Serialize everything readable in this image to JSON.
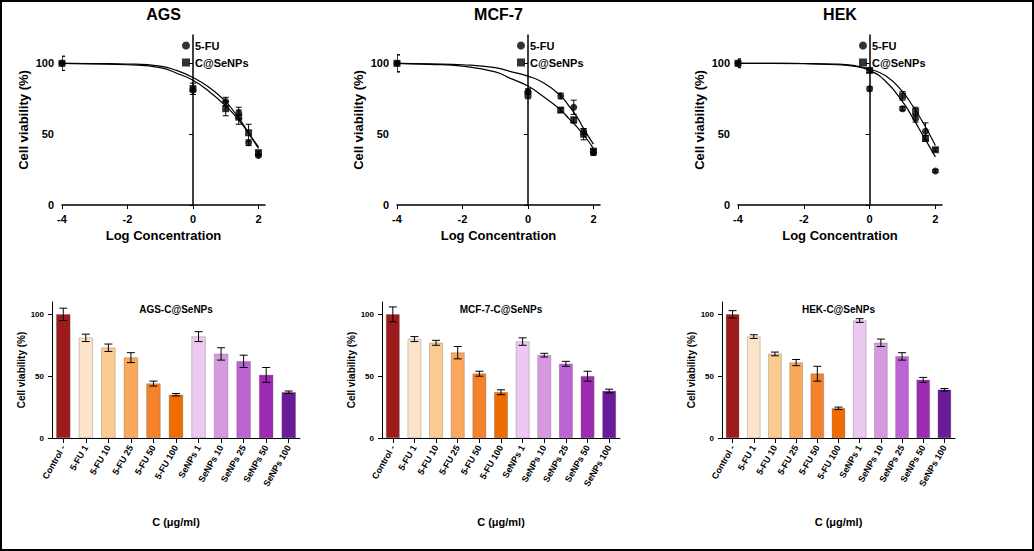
{
  "chart_data": [
    {
      "type": "scatter",
      "title": "AGS",
      "x_label": "Log Concentration",
      "y_label": "Cell viability (%)",
      "xlim": [
        -4,
        2.2
      ],
      "xticks": [
        -4,
        -2,
        0,
        2
      ],
      "ylim": [
        0,
        120
      ],
      "yticks": [
        0,
        50,
        100
      ],
      "legend": "upper right",
      "series": [
        {
          "name": "5-FU",
          "marker": "circle",
          "color": "#000000",
          "x": [
            -4,
            0,
            1,
            1.398,
            1.699,
            2
          ],
          "values": [
            100,
            81,
            73,
            65,
            44,
            35
          ],
          "errors": [
            5,
            3,
            3,
            4,
            2,
            1
          ],
          "fit_x": [
            -4,
            -3,
            -2,
            -1,
            -0.5,
            0,
            0.5,
            1,
            1.25,
            1.5,
            1.75,
            2
          ],
          "fit_values": [
            100,
            99.8,
            99.5,
            98,
            95,
            90,
            83,
            73,
            66,
            58,
            49,
            40
          ]
        },
        {
          "name": "C@SeNPs",
          "marker": "square",
          "color": "#000000",
          "x": [
            -4,
            0,
            1,
            1.398,
            1.699,
            2
          ],
          "values": [
            100,
            82,
            68,
            62,
            51,
            37
          ],
          "errors": [
            5,
            4,
            5,
            5,
            6,
            1
          ],
          "fit_x": [
            -4,
            -3,
            -2,
            -1,
            -0.5,
            0,
            0.5,
            1,
            1.25,
            1.5,
            1.75,
            2
          ],
          "fit_values": [
            100,
            99.6,
            99,
            97,
            93,
            88,
            80,
            70,
            64,
            57,
            49,
            41
          ]
        }
      ]
    },
    {
      "type": "scatter",
      "title": "MCF-7",
      "x_label": "Log Concentration",
      "y_label": "Cell viability (%)",
      "xlim": [
        -4,
        2.2
      ],
      "xticks": [
        -4,
        -2,
        0,
        2
      ],
      "ylim": [
        0,
        120
      ],
      "yticks": [
        0,
        50,
        100
      ],
      "legend": "upper right",
      "series": [
        {
          "name": "5-FU",
          "marker": "circle",
          "color": "#000000",
          "x": [
            -4,
            0,
            1,
            1.398,
            1.699,
            2
          ],
          "values": [
            100,
            80,
            77,
            69,
            52,
            37
          ],
          "errors": [
            6,
            2,
            2,
            5,
            2,
            2
          ],
          "fit_x": [
            -4,
            -3,
            -2,
            -1,
            -0.5,
            0,
            0.5,
            1,
            1.25,
            1.5,
            1.75,
            2
          ],
          "fit_values": [
            100,
            99.6,
            99,
            97,
            94,
            91,
            86,
            77,
            70,
            62,
            52,
            43
          ]
        },
        {
          "name": "C@SeNPs",
          "marker": "square",
          "color": "#000000",
          "x": [
            -4,
            0,
            1,
            1.398,
            1.699,
            2
          ],
          "values": [
            100,
            78,
            67,
            60,
            50,
            38
          ],
          "errors": [
            6,
            3,
            1.5,
            2,
            4,
            1.5
          ],
          "fit_x": [
            -4,
            -3,
            -2,
            -1,
            -0.5,
            0,
            0.5,
            1,
            1.25,
            1.5,
            1.75,
            2
          ],
          "fit_values": [
            100,
            99.3,
            98,
            94,
            89,
            84,
            76,
            67,
            61,
            55,
            48,
            40
          ]
        }
      ]
    },
    {
      "type": "scatter",
      "title": "HEK",
      "x_label": "Log Concentration",
      "y_label": "Cell viability (%)",
      "xlim": [
        -4,
        2.2
      ],
      "xticks": [
        -4,
        -2,
        0,
        2
      ],
      "ylim": [
        0,
        120
      ],
      "yticks": [
        0,
        50,
        100
      ],
      "legend": "upper right",
      "series": [
        {
          "name": "5-FU",
          "marker": "circle",
          "color": "#000000",
          "x": [
            -4,
            0,
            1,
            1.398,
            1.699,
            2
          ],
          "values": [
            100,
            82,
            68,
            61,
            52,
            24
          ],
          "errors": [
            3,
            1.5,
            1.5,
            2.5,
            6,
            1
          ],
          "fit_x": [
            -4,
            -3,
            -2,
            -1,
            -0.5,
            0,
            0.5,
            1,
            1.25,
            1.5,
            1.75,
            2
          ],
          "fit_values": [
            100,
            100,
            99.8,
            99,
            98,
            95,
            87,
            73,
            64,
            54,
            44,
            34
          ]
        },
        {
          "name": "C@SeNPs",
          "marker": "square",
          "color": "#000000",
          "x": [
            -4,
            0,
            1,
            1.398,
            1.699,
            2
          ],
          "values": [
            100,
            95,
            77,
            66,
            47,
            39
          ],
          "errors": [
            3,
            1.5,
            3,
            3,
            2,
            1
          ],
          "fit_x": [
            -4,
            -3,
            -2,
            -1,
            -0.5,
            0,
            0.5,
            1,
            1.25,
            1.5,
            1.75,
            2
          ],
          "fit_values": [
            100,
            100,
            99.9,
            99.5,
            98.5,
            96,
            91,
            80,
            72,
            63,
            53,
            42
          ]
        }
      ]
    },
    {
      "type": "bar",
      "title": "AGS-C@SeNPs",
      "x_label": "C (μg/ml)",
      "y_label": "Cell viability (%)",
      "ylim": [
        0,
        110
      ],
      "yticks": [
        0,
        50,
        100
      ],
      "categories": [
        "Control -",
        "5-FU 1",
        "5-FU 10",
        "5-FU 25",
        "5-FU 50",
        "5-FU 100",
        "SeNPs 1",
        "SeNPs 10",
        "SeNPs 25",
        "SeNPs 50",
        "SeNPs 100"
      ],
      "values": [
        100,
        81,
        73,
        65,
        44,
        35,
        82,
        68,
        62,
        51,
        37
      ],
      "errors": [
        5,
        3,
        3,
        4,
        2,
        1,
        4,
        5,
        5,
        6,
        1
      ],
      "colors": [
        "#9e1b1b",
        "#fde4c8",
        "#fccb8f",
        "#f9a85c",
        "#f4822d",
        "#ef6c00",
        "#ecc9f0",
        "#d699e0",
        "#bb63d0",
        "#9d2bb1",
        "#6a1b9a"
      ]
    },
    {
      "type": "bar",
      "title": "MCF-7-C@SeNPs",
      "x_label": "C (μg/ml)",
      "y_label": "Cell viability (%)",
      "ylim": [
        0,
        110
      ],
      "yticks": [
        0,
        50,
        100
      ],
      "categories": [
        "Control -",
        "5-FU 1",
        "5-FU 10",
        "5-FU 25",
        "5-FU 50",
        "5-FU 100",
        "SeNPs 1",
        "SeNPs 10",
        "SeNPs 25",
        "SeNPs 50",
        "SeNPs 100"
      ],
      "values": [
        100,
        80,
        77,
        69,
        52,
        37,
        78,
        67,
        60,
        50,
        38
      ],
      "errors": [
        6,
        2,
        2,
        5,
        2,
        2,
        3,
        1.5,
        2,
        4,
        1.5
      ],
      "colors": [
        "#9e1b1b",
        "#fde4c8",
        "#fccb8f",
        "#f9a85c",
        "#f4822d",
        "#ef6c00",
        "#ecc9f0",
        "#d699e0",
        "#bb63d0",
        "#9d2bb1",
        "#6a1b9a"
      ]
    },
    {
      "type": "bar",
      "title": "HEK-C@SeNPs",
      "x_label": "C (μg/ml)",
      "y_label": "Cell viability (%)",
      "ylim": [
        0,
        110
      ],
      "yticks": [
        0,
        50,
        100
      ],
      "categories": [
        "Control -",
        "5-FU 1",
        "5-FU 10",
        "5-FU 25",
        "5-FU 50",
        "5-FU 100",
        "SeNPs 1",
        "SeNPs 10",
        "SeNPs 25",
        "SeNPs 50",
        "SeNPs 100"
      ],
      "values": [
        100,
        82,
        68,
        61,
        52,
        24,
        95,
        77,
        66,
        47,
        39
      ],
      "errors": [
        3,
        1.5,
        1.5,
        2.5,
        6,
        1,
        1.5,
        3,
        3,
        2,
        1
      ],
      "colors": [
        "#9e1b1b",
        "#fde4c8",
        "#fccb8f",
        "#f9a85c",
        "#f4822d",
        "#ef6c00",
        "#ecc9f0",
        "#d699e0",
        "#bb63d0",
        "#9d2bb1",
        "#6a1b9a"
      ]
    }
  ]
}
